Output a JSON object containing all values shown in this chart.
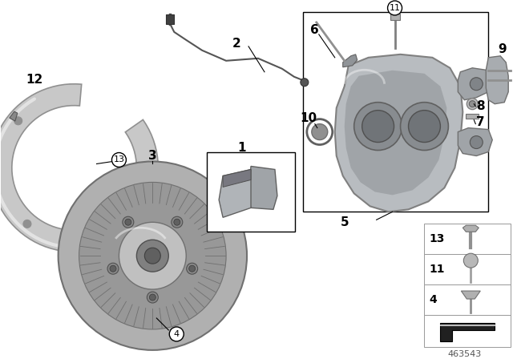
{
  "bg_color": "#ffffff",
  "diagram_id": "463543",
  "colors": {
    "shield": "#c8c8c8",
    "shield_edge": "#909090",
    "shield_light": "#e0e0e0",
    "disc": "#b0b0b0",
    "disc_edge": "#707070",
    "disc_hub": "#c0c0c0",
    "disc_hub_inner": "#a0a0a0",
    "disc_vent": "#888888",
    "caliper": "#b8bcc0",
    "caliper_edge": "#888888",
    "caliper_dark": "#909498",
    "wire": "#555555",
    "pad": "#909090",
    "pad_dark": "#707070",
    "black": "#000000",
    "white": "#ffffff",
    "label_text": "#000000",
    "fastener_body": "#b0b0b0",
    "fastener_edge": "#707070"
  },
  "layout": {
    "fig_w": 6.4,
    "fig_h": 4.48,
    "dpi": 100
  }
}
